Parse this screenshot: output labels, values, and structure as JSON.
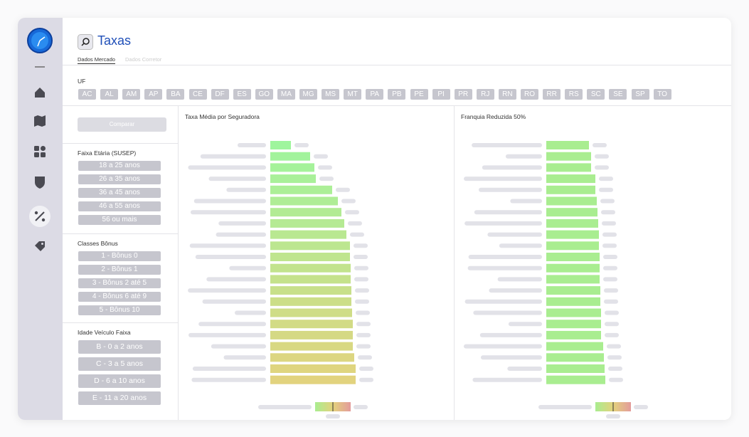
{
  "header": {
    "title": "Taxas",
    "tabs": [
      "Dados Mercado",
      "Dados Corretor"
    ]
  },
  "uf": {
    "label": "UF",
    "states": [
      "AC",
      "AL",
      "AM",
      "AP",
      "BA",
      "CE",
      "DF",
      "ES",
      "GO",
      "MA",
      "MG",
      "MS",
      "MT",
      "PA",
      "PB",
      "PE",
      "PI",
      "PR",
      "RJ",
      "RN",
      "RO",
      "RR",
      "RS",
      "SC",
      "SE",
      "SP",
      "TO"
    ]
  },
  "filters": {
    "button": "Comparar",
    "groups": [
      {
        "title": "Faixa Etária (SUSEP)",
        "options": [
          "18 a 25 anos",
          "26 a 35 anos",
          "36 a 45 anos",
          "46 a 55 anos",
          "56 ou mais"
        ]
      },
      {
        "title": "Classes Bônus",
        "options": [
          "1 - Bônus 0",
          "2 - Bônus 1",
          "3 - Bônus 2 até 5",
          "4 - Bônus 6 até 9",
          "5 - Bônus 10"
        ]
      },
      {
        "title": "Idade Veículo Faixa",
        "options": [
          "B - 0 a 2 anos",
          "C - 3 a 5 anos",
          "D - 6 a 10 anos",
          "E - 11 a 20 anos"
        ]
      }
    ]
  },
  "charts": [
    {
      "type": "bar",
      "orientation": "horizontal",
      "title": "Taxa Média por Seguradora",
      "xlim": [
        0,
        130
      ],
      "gradient": [
        "#9ff59d",
        "#e2d37e"
      ],
      "values": [
        29,
        56,
        62,
        64,
        87,
        95,
        100,
        104,
        107,
        112,
        112,
        113,
        113,
        114,
        114,
        115,
        116,
        116,
        116,
        118,
        120,
        120
      ]
    },
    {
      "type": "bar",
      "orientation": "horizontal",
      "title": "Franquia Reduzida 50%",
      "xlim": [
        0,
        130
      ],
      "gradient": [
        "#a9ed90",
        "#a9ed90"
      ],
      "values": [
        60,
        63,
        63,
        69,
        69,
        71,
        72,
        73,
        74,
        74,
        75,
        75,
        75,
        76,
        76,
        77,
        77,
        77,
        80,
        81,
        82,
        83
      ]
    }
  ]
}
